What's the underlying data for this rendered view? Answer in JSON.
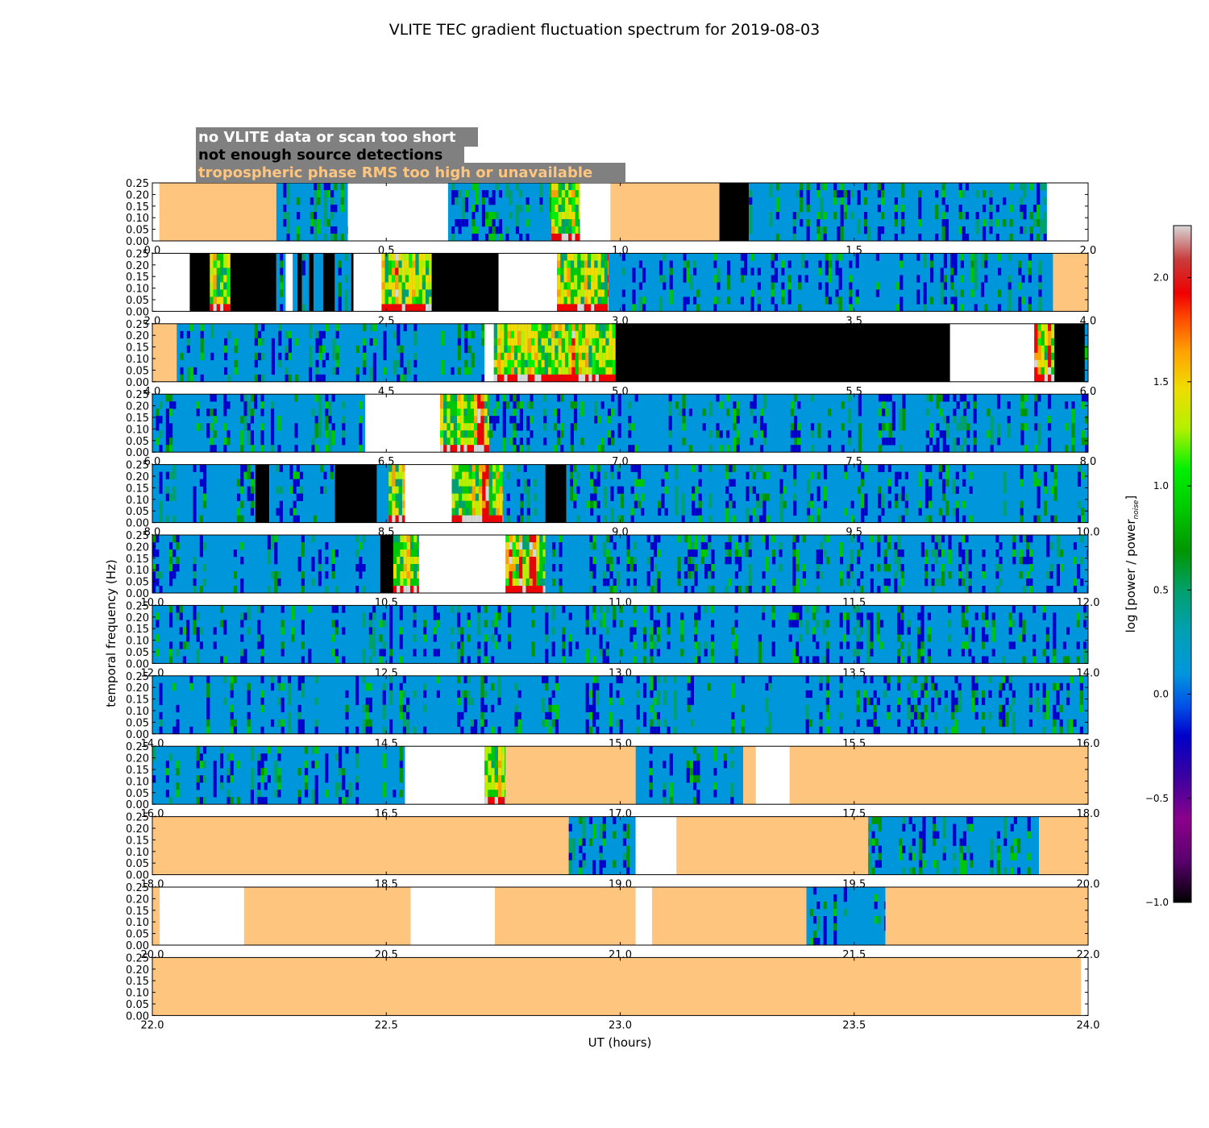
{
  "chart_data": {
    "type": "heatmap",
    "title": "VLITE TEC gradient fluctuation spectrum for 2019-08-03",
    "xlabel": "UT (hours)",
    "ylabel": "temporal frequency (Hz)",
    "ylim": [
      0,
      0.25
    ],
    "y_ticks": [
      "0.00",
      "0.05",
      "0.10",
      "0.15",
      "0.20",
      "0.25"
    ],
    "colorbar": {
      "label_main": "log [power / power",
      "label_sub": "noise",
      "label_close": "]",
      "range": [
        -1.0,
        2.25
      ],
      "ticks": [
        "−1.0",
        "−0.5",
        "0.0",
        "0.5",
        "1.0",
        "1.5",
        "2.0"
      ],
      "tick_values": [
        -1.0,
        -0.5,
        0.0,
        0.5,
        1.0,
        1.5,
        2.0
      ]
    },
    "legend": {
      "position": "top-left",
      "entries": [
        {
          "key": "white",
          "label": "no VLITE data or scan too short",
          "color": "#ffffff"
        },
        {
          "key": "black",
          "label": "not enough source detections",
          "color": "#000000"
        },
        {
          "key": "tan",
          "label": "tropospheric phase RMS too high or unavailable",
          "color": "#fec57e"
        }
      ]
    },
    "colors": {
      "background_blue": "#0096dc",
      "white": "#ffffff",
      "black": "#000000",
      "tan": "#fec57e",
      "legend_box": "#808080"
    },
    "panels": [
      {
        "range": [
          0,
          2
        ],
        "ticks": [
          "0.0",
          "0.5",
          "1.0",
          "1.5",
          "2.0"
        ],
        "segments": [
          [
            0,
            0.015,
            "white"
          ],
          [
            0.015,
            0.265,
            "tan"
          ],
          [
            0.265,
            0.418,
            "data"
          ],
          [
            0.418,
            0.632,
            "white"
          ],
          [
            0.632,
            0.853,
            "data"
          ],
          [
            0.853,
            0.914,
            "active"
          ],
          [
            0.914,
            0.979,
            "white"
          ],
          [
            0.979,
            1.212,
            "tan"
          ],
          [
            1.212,
            1.275,
            "black"
          ],
          [
            1.275,
            1.912,
            "data"
          ],
          [
            1.912,
            2.0,
            "white"
          ]
        ]
      },
      {
        "range": [
          2,
          4
        ],
        "ticks": [
          "2.0",
          "2.5",
          "3.0",
          "3.5",
          "4.0"
        ],
        "segments": [
          [
            2.0,
            2.08,
            "white"
          ],
          [
            2.08,
            2.123,
            "black"
          ],
          [
            2.123,
            2.167,
            "active"
          ],
          [
            2.167,
            2.265,
            "black"
          ],
          [
            2.265,
            2.285,
            "data"
          ],
          [
            2.285,
            2.3,
            "white"
          ],
          [
            2.3,
            2.31,
            "data"
          ],
          [
            2.31,
            2.32,
            "black"
          ],
          [
            2.32,
            2.335,
            "data"
          ],
          [
            2.335,
            2.345,
            "black"
          ],
          [
            2.345,
            2.365,
            "data"
          ],
          [
            2.365,
            2.39,
            "black"
          ],
          [
            2.39,
            2.425,
            "data"
          ],
          [
            2.425,
            2.43,
            "black"
          ],
          [
            2.43,
            2.49,
            "white"
          ],
          [
            2.49,
            2.597,
            "active"
          ],
          [
            2.597,
            2.74,
            "black"
          ],
          [
            2.74,
            2.865,
            "white"
          ],
          [
            2.865,
            2.975,
            "active"
          ],
          [
            2.975,
            3.925,
            "data"
          ],
          [
            3.925,
            4.0,
            "tan"
          ]
        ]
      },
      {
        "range": [
          4,
          6
        ],
        "ticks": [
          "4.0",
          "4.5",
          "5.0",
          "5.5",
          "6.0"
        ],
        "segments": [
          [
            4.0,
            4.052,
            "tan"
          ],
          [
            4.052,
            4.71,
            "data"
          ],
          [
            4.71,
            4.73,
            "white"
          ],
          [
            4.73,
            4.99,
            "active"
          ],
          [
            4.99,
            5.705,
            "black"
          ],
          [
            5.705,
            5.885,
            "white"
          ],
          [
            5.885,
            5.928,
            "active"
          ],
          [
            5.928,
            5.993,
            "black"
          ],
          [
            5.993,
            6.0,
            "data"
          ]
        ]
      },
      {
        "range": [
          6,
          8
        ],
        "ticks": [
          "6.0",
          "6.5",
          "7.0",
          "7.5",
          "8.0"
        ],
        "segments": [
          [
            6.0,
            6.455,
            "data"
          ],
          [
            6.455,
            6.615,
            "white"
          ],
          [
            6.615,
            6.72,
            "active"
          ],
          [
            6.72,
            8.0,
            "data"
          ]
        ]
      },
      {
        "range": [
          8,
          10
        ],
        "ticks": [
          "8.0",
          "8.5",
          "9.0",
          "9.5",
          "10.0"
        ],
        "segments": [
          [
            8.0,
            8.22,
            "data"
          ],
          [
            8.22,
            8.25,
            "black"
          ],
          [
            8.25,
            8.39,
            "data"
          ],
          [
            8.39,
            8.48,
            "black"
          ],
          [
            8.48,
            8.505,
            "data"
          ],
          [
            8.505,
            8.54,
            "active"
          ],
          [
            8.54,
            8.64,
            "white"
          ],
          [
            8.64,
            8.75,
            "active"
          ],
          [
            8.75,
            8.84,
            "data"
          ],
          [
            8.84,
            8.885,
            "black"
          ],
          [
            8.885,
            10.0,
            "data"
          ]
        ]
      },
      {
        "range": [
          10,
          12
        ],
        "ticks": [
          "10.0",
          "10.5",
          "11.0",
          "11.5",
          "12.0"
        ],
        "segments": [
          [
            10.0,
            10.487,
            "data"
          ],
          [
            10.487,
            10.515,
            "black"
          ],
          [
            10.515,
            10.57,
            "active"
          ],
          [
            10.57,
            10.755,
            "white"
          ],
          [
            10.755,
            10.84,
            "active"
          ],
          [
            10.84,
            12.0,
            "data"
          ]
        ]
      },
      {
        "range": [
          12,
          14
        ],
        "ticks": [
          "12.0",
          "12.5",
          "13.0",
          "13.5",
          "14.0"
        ],
        "segments": [
          [
            12.0,
            14.0,
            "data"
          ]
        ]
      },
      {
        "range": [
          14,
          16
        ],
        "ticks": [
          "14.0",
          "14.5",
          "15.0",
          "15.5",
          "16.0"
        ],
        "segments": [
          [
            14.0,
            16.0,
            "data"
          ]
        ]
      },
      {
        "range": [
          16,
          18
        ],
        "ticks": [
          "16.0",
          "16.5",
          "17.0",
          "17.5",
          "18.0"
        ],
        "segments": [
          [
            16.0,
            16.54,
            "data"
          ],
          [
            16.54,
            16.71,
            "white"
          ],
          [
            16.71,
            16.755,
            "active"
          ],
          [
            16.755,
            17.033,
            "tan"
          ],
          [
            17.033,
            17.263,
            "data"
          ],
          [
            17.263,
            17.29,
            "tan"
          ],
          [
            17.29,
            17.362,
            "white"
          ],
          [
            17.362,
            18.0,
            "tan"
          ]
        ]
      },
      {
        "range": [
          18,
          20
        ],
        "ticks": [
          "18.0",
          "18.5",
          "19.0",
          "19.5",
          "20.0"
        ],
        "segments": [
          [
            18.0,
            18.89,
            "tan"
          ],
          [
            18.89,
            19.033,
            "data"
          ],
          [
            19.033,
            19.12,
            "white"
          ],
          [
            19.12,
            19.53,
            "tan"
          ],
          [
            19.53,
            19.895,
            "data"
          ],
          [
            19.895,
            20.0,
            "tan"
          ]
        ]
      },
      {
        "range": [
          20,
          22
        ],
        "ticks": [
          "20.0",
          "20.5",
          "21.0",
          "21.5",
          "22.0"
        ],
        "segments": [
          [
            20.0,
            20.016,
            "tan"
          ],
          [
            20.016,
            20.196,
            "white"
          ],
          [
            20.196,
            20.552,
            "tan"
          ],
          [
            20.552,
            20.732,
            "white"
          ],
          [
            20.732,
            21.033,
            "tan"
          ],
          [
            21.033,
            21.068,
            "white"
          ],
          [
            21.068,
            21.398,
            "tan"
          ],
          [
            21.398,
            21.567,
            "data"
          ],
          [
            21.567,
            22.0,
            "tan"
          ]
        ]
      },
      {
        "range": [
          22,
          24
        ],
        "ticks": [
          "22.0",
          "22.5",
          "23.0",
          "23.5",
          "24.0"
        ],
        "segments": [
          [
            22.0,
            23.985,
            "tan"
          ],
          [
            23.985,
            24.0,
            "white"
          ]
        ]
      }
    ]
  }
}
